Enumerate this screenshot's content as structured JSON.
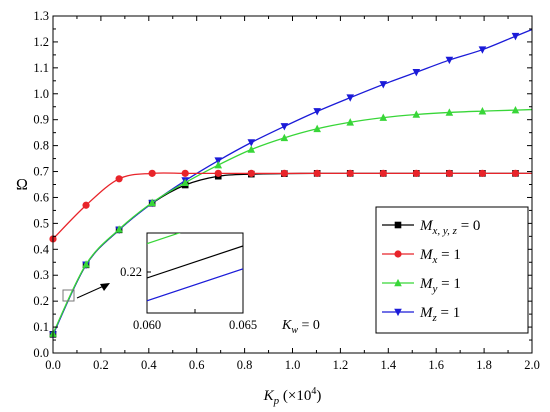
{
  "chart_data": {
    "type": "line",
    "xlabel_main": "K",
    "xlabel_sub": "p",
    "xlabel_unit": " (×10",
    "xlabel_exp": "4",
    "xlabel_close": ")",
    "ylabel": "Ω",
    "xlim": [
      0.0,
      2.0
    ],
    "ylim": [
      0.0,
      1.3
    ],
    "x_ticks": [
      "0.0",
      "0.2",
      "0.4",
      "0.6",
      "0.8",
      "1.0",
      "1.2",
      "1.4",
      "1.6",
      "1.8",
      "2.0"
    ],
    "y_ticks": [
      "0.0",
      "0.1",
      "0.2",
      "0.3",
      "0.4",
      "0.5",
      "0.6",
      "0.7",
      "0.8",
      "0.9",
      "1.0",
      "1.1",
      "1.2",
      "1.3"
    ],
    "annotation_main": "K",
    "annotation_sub": "w",
    "annotation_val": " = 0",
    "grid": false,
    "legend_position": "right",
    "series": [
      {
        "name": "M",
        "name_sub": "x, y, z",
        "name_val": " = 0",
        "color": "#000000",
        "marker": "square",
        "x": [
          0.0,
          0.138,
          0.276,
          0.414,
          0.552,
          0.69,
          0.828,
          0.966,
          1.103,
          1.241,
          1.379,
          1.517,
          1.655,
          1.793,
          1.931
        ],
        "y": [
          0.072,
          0.34,
          0.475,
          0.578,
          0.648,
          0.682,
          0.69,
          0.692,
          0.693,
          0.693,
          0.693,
          0.693,
          0.693,
          0.693,
          0.693
        ]
      },
      {
        "name": "M",
        "name_sub": "x",
        "name_val": " = 1",
        "color": "#e8242a",
        "marker": "circle",
        "x": [
          0.0,
          0.138,
          0.276,
          0.414,
          0.552,
          0.69,
          0.828,
          0.966,
          1.103,
          1.241,
          1.379,
          1.517,
          1.655,
          1.793,
          1.931
        ],
        "y": [
          0.44,
          0.57,
          0.672,
          0.693,
          0.693,
          0.693,
          0.693,
          0.693,
          0.693,
          0.693,
          0.693,
          0.693,
          0.693,
          0.693,
          0.693
        ]
      },
      {
        "name": "M",
        "name_sub": "y",
        "name_val": " = 1",
        "color": "#38d638",
        "marker": "triangle-up",
        "x": [
          0.0,
          0.138,
          0.276,
          0.414,
          0.552,
          0.69,
          0.828,
          0.966,
          1.103,
          1.241,
          1.379,
          1.517,
          1.655,
          1.793,
          1.931
        ],
        "y": [
          0.075,
          0.342,
          0.477,
          0.58,
          0.657,
          0.725,
          0.785,
          0.83,
          0.865,
          0.89,
          0.908,
          0.92,
          0.928,
          0.933,
          0.937
        ]
      },
      {
        "name": "M",
        "name_sub": "z",
        "name_val": " = 1",
        "color": "#1b1bd8",
        "marker": "triangle-down",
        "x": [
          0.0,
          0.138,
          0.276,
          0.414,
          0.552,
          0.69,
          0.828,
          0.966,
          1.103,
          1.241,
          1.379,
          1.517,
          1.655,
          1.793,
          1.931
        ],
        "y": [
          0.07,
          0.34,
          0.475,
          0.578,
          0.665,
          0.742,
          0.812,
          0.874,
          0.932,
          0.985,
          1.036,
          1.083,
          1.13,
          1.17,
          1.222
        ]
      }
    ],
    "inset": {
      "xlim": [
        0.06,
        0.065
      ],
      "x_ticks": [
        "0.060",
        "0.065"
      ],
      "y_label": "0.22",
      "lines": [
        {
          "color": "#38d638",
          "y0": 0.2282,
          "y1": 0.2302
        },
        {
          "color": "#000000",
          "y0": 0.2192,
          "y1": 0.2212
        },
        {
          "color": "#1b1bd8",
          "y0": 0.2132,
          "y1": 0.2152
        }
      ],
      "ylim": [
        0.21,
        0.231
      ]
    }
  }
}
